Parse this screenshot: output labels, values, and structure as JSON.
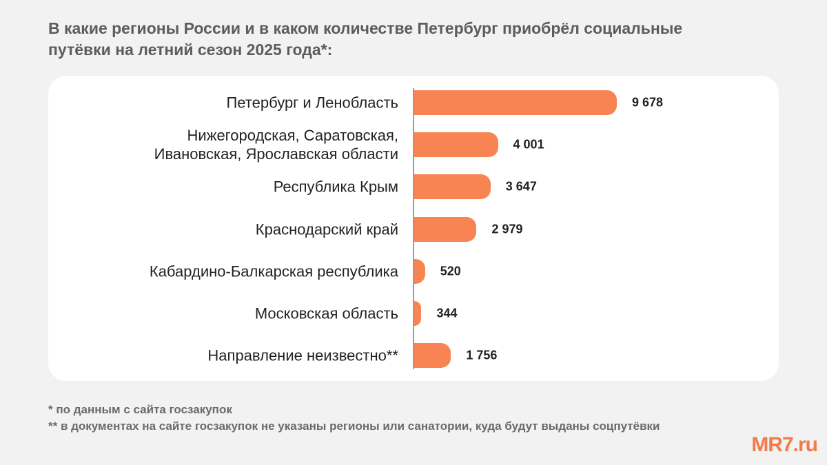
{
  "title": "В какие регионы России и в каком количестве  Петербург приобрёл социальные путёвки на летний сезон 2025 года*:",
  "chart_data": {
    "type": "bar",
    "orientation": "horizontal",
    "title": "В какие регионы России и в каком количестве  Петербург приобрёл социальные путёвки на летний сезон 2025 года*:",
    "categories": [
      "Петербург и Ленобласть",
      "Нижегородская, Саратовская, Ивановская, Ярославская области",
      "Республика Крым",
      "Краснодарский край",
      "Кабардино-Балкарская республика",
      "Московская область",
      "Направление неизвестно**"
    ],
    "values": [
      9678,
      4001,
      3647,
      2979,
      520,
      344,
      1756
    ],
    "value_labels": [
      "9 678",
      "4 001",
      "3 647",
      "2 979",
      "520",
      "344",
      "1 756"
    ],
    "xlim": [
      0,
      9678
    ],
    "grid": false,
    "color": "#f78452"
  },
  "notes": [
    "* по данным с сайта госзакупок",
    "** в документах на сайте госзакупок не указаны регионы или санатории, куда будут выданы соцпутёвки"
  ],
  "logo": "MR7.ru"
}
